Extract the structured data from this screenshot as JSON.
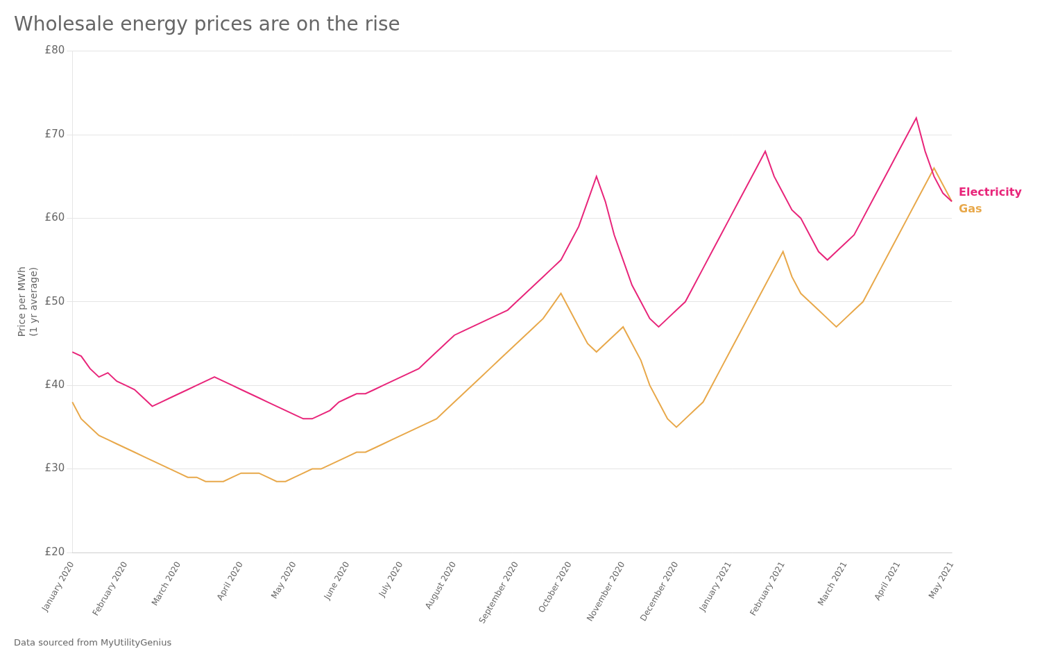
{
  "chart_data": {
    "type": "line",
    "title": "Wholesale energy prices are on the rise",
    "ylabel": "Price per MWh\n(1 yr average)",
    "annotations": [
      "Data sourced from MyUtilityGenius"
    ],
    "categories": [
      "January 2020",
      null,
      null,
      null,
      null,
      null,
      "February 2020",
      null,
      null,
      null,
      null,
      null,
      "March 2020",
      null,
      null,
      null,
      null,
      null,
      null,
      "April 2020",
      null,
      null,
      null,
      null,
      null,
      "May 2020",
      null,
      null,
      null,
      null,
      null,
      "June 2020",
      null,
      null,
      null,
      null,
      null,
      "July 2020",
      null,
      null,
      null,
      null,
      null,
      "August 2020",
      null,
      null,
      null,
      null,
      null,
      null,
      "September 2020",
      null,
      null,
      null,
      null,
      null,
      "October 2020",
      null,
      null,
      null,
      null,
      null,
      "November 2020",
      null,
      null,
      null,
      null,
      null,
      "December 2020",
      null,
      null,
      null,
      null,
      null,
      "January 2021",
      null,
      null,
      null,
      null,
      null,
      "February 2021",
      null,
      null,
      null,
      null,
      null,
      null,
      "March 2021",
      null,
      null,
      null,
      null,
      null,
      "April 2021",
      null,
      null,
      null,
      null,
      null,
      "May 2021"
    ],
    "series": [
      {
        "name": "Electricity",
        "color": "#e8257a",
        "values": [
          44,
          43.5,
          42,
          41,
          41.5,
          40.5,
          40,
          39.5,
          38.5,
          37.5,
          38,
          38.5,
          39,
          39.5,
          40,
          40.5,
          41,
          40.5,
          40,
          39.5,
          39,
          38.5,
          38,
          37.5,
          37,
          36.5,
          36,
          36,
          36.5,
          37,
          38,
          38.5,
          39,
          39,
          39.5,
          40,
          40.5,
          41,
          41.5,
          42,
          43,
          44,
          45,
          46,
          46.5,
          47,
          47.5,
          48,
          48.5,
          49,
          50,
          51,
          52,
          53,
          54,
          55,
          57,
          59,
          62,
          65,
          62,
          58,
          55,
          52,
          50,
          48,
          47,
          48,
          49,
          50,
          52,
          54,
          56,
          58,
          60,
          62,
          64,
          66,
          68,
          65,
          63,
          61,
          60,
          58,
          56,
          55,
          56,
          57,
          58,
          60,
          62,
          64,
          66,
          68,
          70,
          72,
          68,
          65,
          63,
          62
        ]
      },
      {
        "name": "Gas",
        "color": "#e8a84a",
        "values": [
          38,
          36,
          35,
          34,
          33.5,
          33,
          32.5,
          32,
          31.5,
          31,
          30.5,
          30,
          29.5,
          29,
          29,
          28.5,
          28.5,
          28.5,
          29,
          29.5,
          29.5,
          29.5,
          29,
          28.5,
          28.5,
          29,
          29.5,
          30,
          30,
          30.5,
          31,
          31.5,
          32,
          32,
          32.5,
          33,
          33.5,
          34,
          34.5,
          35,
          35.5,
          36,
          37,
          38,
          39,
          40,
          41,
          42,
          43,
          44,
          45,
          46,
          47,
          48,
          49.5,
          51,
          49,
          47,
          45,
          44,
          45,
          46,
          47,
          45,
          43,
          40,
          38,
          36,
          35,
          36,
          37,
          38,
          40,
          42,
          44,
          46,
          48,
          50,
          52,
          54,
          56,
          53,
          51,
          50,
          49,
          48,
          47,
          48,
          49,
          50,
          52,
          54,
          56,
          58,
          60,
          62,
          64,
          66,
          64,
          62
        ]
      }
    ],
    "ylim": [
      20,
      80
    ],
    "yticks": [
      {
        "value": 20,
        "label": "£20"
      },
      {
        "value": 30,
        "label": "£30"
      },
      {
        "value": 40,
        "label": "£40"
      },
      {
        "value": 50,
        "label": "£50"
      },
      {
        "value": 60,
        "label": "£60"
      },
      {
        "value": 70,
        "label": "£70"
      },
      {
        "value": 80,
        "label": "£80"
      }
    ],
    "grid": true
  }
}
